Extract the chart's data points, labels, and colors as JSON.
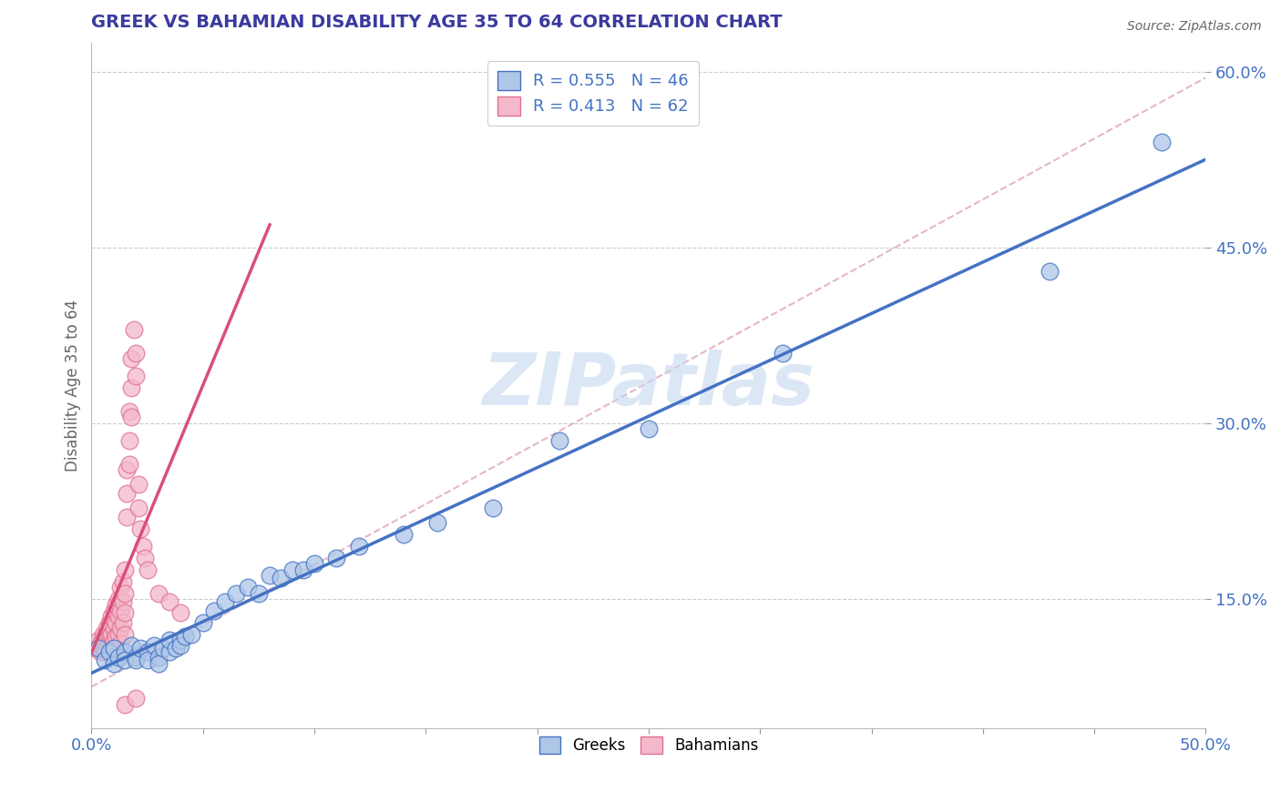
{
  "title": "GREEK VS BAHAMIAN DISABILITY AGE 35 TO 64 CORRELATION CHART",
  "source": "Source: ZipAtlas.com",
  "ylabel": "Disability Age 35 to 64",
  "xlim": [
    0.0,
    0.5
  ],
  "ylim": [
    0.04,
    0.625
  ],
  "ytick_positions": [
    0.15,
    0.3,
    0.45,
    0.6
  ],
  "ytick_labels": [
    "15.0%",
    "30.0%",
    "45.0%",
    "60.0%"
  ],
  "greek_R": 0.555,
  "greek_N": 46,
  "bahamian_R": 0.413,
  "bahamian_N": 62,
  "greek_color": "#aec6e8",
  "greek_edge_color": "#4472c4",
  "bahamian_color": "#f4b8cb",
  "bahamian_edge_color": "#e07090",
  "greek_line_color": "#4472c4",
  "bahamian_line_color": "#d94f7a",
  "diag_color": "#e0b0c0",
  "watermark_color": "#c5d8f0",
  "title_color": "#3a3a9f",
  "greek_scatter": [
    [
      0.003,
      0.108
    ],
    [
      0.006,
      0.098
    ],
    [
      0.008,
      0.105
    ],
    [
      0.01,
      0.095
    ],
    [
      0.01,
      0.108
    ],
    [
      0.012,
      0.1
    ],
    [
      0.015,
      0.105
    ],
    [
      0.015,
      0.098
    ],
    [
      0.018,
      0.11
    ],
    [
      0.02,
      0.1
    ],
    [
      0.02,
      0.098
    ],
    [
      0.022,
      0.108
    ],
    [
      0.025,
      0.105
    ],
    [
      0.025,
      0.098
    ],
    [
      0.028,
      0.11
    ],
    [
      0.03,
      0.1
    ],
    [
      0.03,
      0.095
    ],
    [
      0.032,
      0.108
    ],
    [
      0.035,
      0.105
    ],
    [
      0.035,
      0.115
    ],
    [
      0.038,
      0.108
    ],
    [
      0.04,
      0.115
    ],
    [
      0.04,
      0.11
    ],
    [
      0.042,
      0.118
    ],
    [
      0.045,
      0.12
    ],
    [
      0.05,
      0.13
    ],
    [
      0.055,
      0.14
    ],
    [
      0.06,
      0.148
    ],
    [
      0.065,
      0.155
    ],
    [
      0.07,
      0.16
    ],
    [
      0.075,
      0.155
    ],
    [
      0.08,
      0.17
    ],
    [
      0.085,
      0.168
    ],
    [
      0.09,
      0.175
    ],
    [
      0.095,
      0.175
    ],
    [
      0.1,
      0.18
    ],
    [
      0.11,
      0.185
    ],
    [
      0.12,
      0.195
    ],
    [
      0.14,
      0.205
    ],
    [
      0.155,
      0.215
    ],
    [
      0.18,
      0.228
    ],
    [
      0.21,
      0.285
    ],
    [
      0.25,
      0.295
    ],
    [
      0.31,
      0.36
    ],
    [
      0.43,
      0.43
    ],
    [
      0.48,
      0.54
    ]
  ],
  "bahamian_scatter": [
    [
      0.002,
      0.108
    ],
    [
      0.003,
      0.115
    ],
    [
      0.004,
      0.112
    ],
    [
      0.004,
      0.105
    ],
    [
      0.005,
      0.12
    ],
    [
      0.005,
      0.108
    ],
    [
      0.006,
      0.118
    ],
    [
      0.006,
      0.11
    ],
    [
      0.006,
      0.105
    ],
    [
      0.007,
      0.125
    ],
    [
      0.007,
      0.115
    ],
    [
      0.007,
      0.108
    ],
    [
      0.008,
      0.13
    ],
    [
      0.008,
      0.118
    ],
    [
      0.008,
      0.112
    ],
    [
      0.009,
      0.135
    ],
    [
      0.009,
      0.12
    ],
    [
      0.009,
      0.11
    ],
    [
      0.01,
      0.14
    ],
    [
      0.01,
      0.125
    ],
    [
      0.01,
      0.115
    ],
    [
      0.01,
      0.108
    ],
    [
      0.011,
      0.145
    ],
    [
      0.011,
      0.13
    ],
    [
      0.011,
      0.118
    ],
    [
      0.012,
      0.15
    ],
    [
      0.012,
      0.135
    ],
    [
      0.012,
      0.12
    ],
    [
      0.013,
      0.16
    ],
    [
      0.013,
      0.14
    ],
    [
      0.013,
      0.125
    ],
    [
      0.013,
      0.112
    ],
    [
      0.014,
      0.165
    ],
    [
      0.014,
      0.148
    ],
    [
      0.014,
      0.13
    ],
    [
      0.015,
      0.175
    ],
    [
      0.015,
      0.155
    ],
    [
      0.015,
      0.138
    ],
    [
      0.015,
      0.12
    ],
    [
      0.016,
      0.26
    ],
    [
      0.016,
      0.24
    ],
    [
      0.016,
      0.22
    ],
    [
      0.017,
      0.31
    ],
    [
      0.017,
      0.285
    ],
    [
      0.017,
      0.265
    ],
    [
      0.018,
      0.355
    ],
    [
      0.018,
      0.33
    ],
    [
      0.018,
      0.305
    ],
    [
      0.019,
      0.38
    ],
    [
      0.02,
      0.36
    ],
    [
      0.02,
      0.34
    ],
    [
      0.021,
      0.248
    ],
    [
      0.021,
      0.228
    ],
    [
      0.022,
      0.21
    ],
    [
      0.023,
      0.195
    ],
    [
      0.024,
      0.185
    ],
    [
      0.025,
      0.175
    ],
    [
      0.03,
      0.155
    ],
    [
      0.035,
      0.148
    ],
    [
      0.04,
      0.138
    ],
    [
      0.015,
      0.06
    ],
    [
      0.02,
      0.065
    ]
  ]
}
